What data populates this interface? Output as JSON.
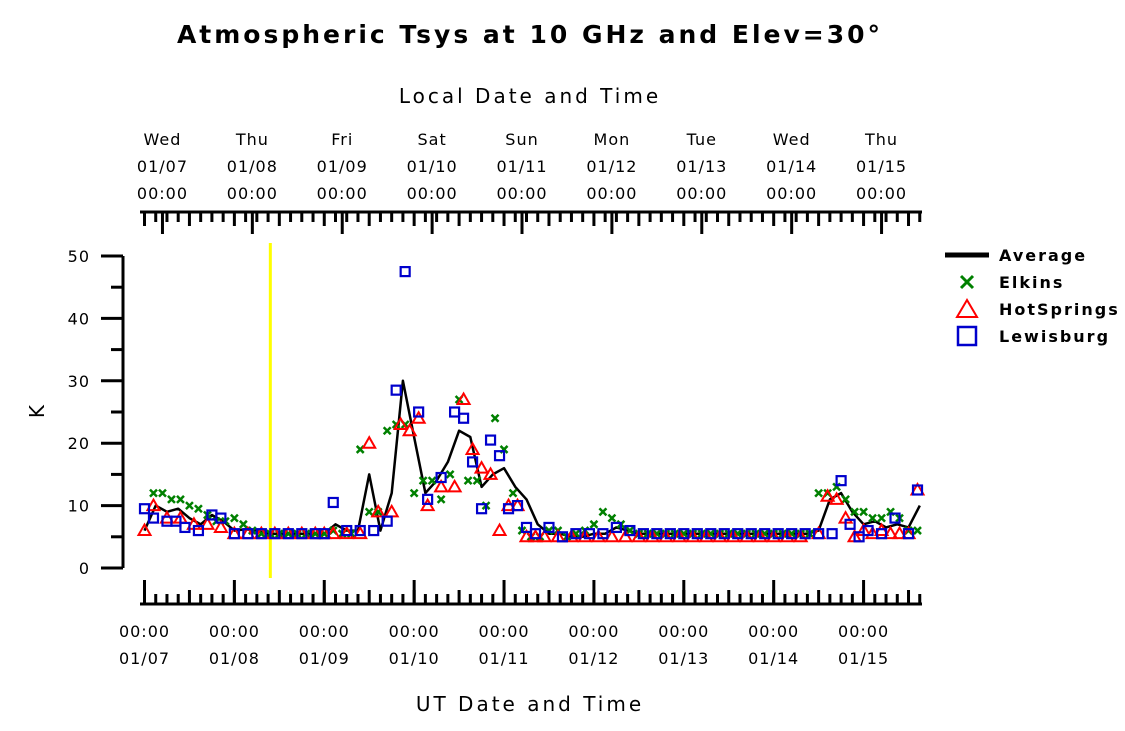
{
  "chart_data": {
    "type": "line",
    "title": "Atmospheric Tsys at 10 GHz and Elev=30°",
    "top_axis_title": "Local Date and Time",
    "bottom_axis_title": "UT Date and Time",
    "ylabel": "K",
    "ylim": [
      0,
      50
    ],
    "y_ticks": [
      "0",
      "10",
      "20",
      "30",
      "40",
      "50"
    ],
    "xlim_days": [
      -0.05,
      8.65
    ],
    "top_ticks": [
      {
        "day": "Wed",
        "date": "01/07",
        "time": "00:00"
      },
      {
        "day": "Thu",
        "date": "01/08",
        "time": "00:00"
      },
      {
        "day": "Fri",
        "date": "01/09",
        "time": "00:00"
      },
      {
        "day": "Sat",
        "date": "01/10",
        "time": "00:00"
      },
      {
        "day": "Sun",
        "date": "01/11",
        "time": "00:00"
      },
      {
        "day": "Mon",
        "date": "01/12",
        "time": "00:00"
      },
      {
        "day": "Tue",
        "date": "01/13",
        "time": "00:00"
      },
      {
        "day": "Wed",
        "date": "01/14",
        "time": "00:00"
      },
      {
        "day": "Thu",
        "date": "01/15",
        "time": "00:00"
      }
    ],
    "top_tick_positions": [
      0.2,
      1.2,
      2.2,
      3.2,
      4.2,
      5.2,
      6.2,
      7.2,
      8.2
    ],
    "bottom_ticks": [
      {
        "time": "00:00",
        "date": "01/07"
      },
      {
        "time": "00:00",
        "date": "01/08"
      },
      {
        "time": "00:00",
        "date": "01/09"
      },
      {
        "time": "00:00",
        "date": "01/10"
      },
      {
        "time": "00:00",
        "date": "01/11"
      },
      {
        "time": "00:00",
        "date": "01/12"
      },
      {
        "time": "00:00",
        "date": "01/13"
      },
      {
        "time": "00:00",
        "date": "01/14"
      },
      {
        "time": "00:00",
        "date": "01/15"
      }
    ],
    "bottom_tick_positions": [
      0,
      1,
      2,
      3,
      4,
      5,
      6,
      7,
      8
    ],
    "marker_line_day": 1.4,
    "legend_position": "right",
    "series": [
      {
        "name": "Average",
        "color": "#000000",
        "marker": "line",
        "x": [
          0,
          0.125,
          0.25,
          0.375,
          0.5,
          0.625,
          0.75,
          0.875,
          1.0,
          1.125,
          1.25,
          1.375,
          1.5,
          1.625,
          1.75,
          1.875,
          2.0,
          2.125,
          2.25,
          2.375,
          2.5,
          2.625,
          2.75,
          2.875,
          3.0,
          3.125,
          3.25,
          3.375,
          3.5,
          3.625,
          3.75,
          3.875,
          4.0,
          4.125,
          4.25,
          4.375,
          4.5,
          4.625,
          4.75,
          4.875,
          5.0,
          5.125,
          5.25,
          5.375,
          5.5,
          5.625,
          5.75,
          5.875,
          6.0,
          6.125,
          6.25,
          6.375,
          6.5,
          6.625,
          6.75,
          6.875,
          7.0,
          7.125,
          7.25,
          7.375,
          7.5,
          7.625,
          7.75,
          7.875,
          8.0,
          8.125,
          8.25,
          8.375,
          8.5,
          8.625
        ],
        "y": [
          6,
          10,
          9,
          9.5,
          8,
          7,
          8.5,
          7.5,
          6,
          6.2,
          6,
          5.5,
          5.5,
          5.5,
          5.5,
          5.5,
          5.5,
          7,
          6,
          6,
          15,
          6,
          12,
          30,
          21,
          12,
          14,
          17,
          22,
          21,
          13,
          15,
          16,
          13,
          11,
          7,
          5.5,
          5.5,
          5,
          5,
          5.5,
          5.5,
          6.5,
          6,
          5.5,
          5.5,
          5.5,
          5.5,
          5.5,
          5.5,
          5.5,
          5.5,
          5.5,
          5.5,
          5.5,
          5.5,
          5.5,
          5.5,
          5.5,
          5.5,
          6,
          11,
          12,
          9,
          7,
          7.5,
          6.5,
          7,
          6.5,
          10
        ]
      },
      {
        "name": "Elkins",
        "color": "#008000",
        "marker": "x",
        "x": [
          0.1,
          0.2,
          0.3,
          0.4,
          0.5,
          0.6,
          0.7,
          0.8,
          0.9,
          1.0,
          1.1,
          1.2,
          1.3,
          1.4,
          1.5,
          1.6,
          1.7,
          1.8,
          1.9,
          2.0,
          2.1,
          2.2,
          2.3,
          2.4,
          2.5,
          2.6,
          2.7,
          2.8,
          2.9,
          3.0,
          3.1,
          3.2,
          3.3,
          3.4,
          3.5,
          3.6,
          3.7,
          3.8,
          3.9,
          4.0,
          4.1,
          4.2,
          4.3,
          4.4,
          4.5,
          4.6,
          4.7,
          4.8,
          4.9,
          5.0,
          5.1,
          5.2,
          5.3,
          5.4,
          5.5,
          5.6,
          5.7,
          5.8,
          5.9,
          6.0,
          6.1,
          6.2,
          6.3,
          6.4,
          6.5,
          6.6,
          6.7,
          6.8,
          6.9,
          7.0,
          7.1,
          7.2,
          7.3,
          7.4,
          7.5,
          7.6,
          7.7,
          7.8,
          7.9,
          8.0,
          8.1,
          8.2,
          8.3,
          8.4,
          8.5,
          8.6
        ],
        "y": [
          12,
          12,
          11,
          11,
          10,
          9.5,
          8.5,
          7.5,
          7.5,
          8,
          7,
          6,
          5.5,
          5.5,
          5.5,
          5.5,
          5.5,
          5.5,
          5.5,
          5.5,
          6,
          5.5,
          5.5,
          19,
          9,
          9,
          22,
          23,
          23,
          12,
          14,
          14,
          11,
          15,
          27,
          14,
          14,
          10,
          24,
          19,
          12,
          6,
          5,
          5,
          6,
          6,
          5,
          5.5,
          6,
          7,
          9,
          8,
          7,
          6,
          5.5,
          5.5,
          5.5,
          5.5,
          5.5,
          5.5,
          5.5,
          5.5,
          5.5,
          5.5,
          5.5,
          5.5,
          5.5,
          5.5,
          5.5,
          5.5,
          5.5,
          5.5,
          5.5,
          5.5,
          12,
          12,
          13,
          11,
          9,
          9,
          8,
          8,
          9,
          8,
          6,
          6
        ]
      },
      {
        "name": "HotSprings",
        "color": "#ff0000",
        "marker": "triangle",
        "x": [
          0,
          0.1,
          0.25,
          0.4,
          0.55,
          0.7,
          0.85,
          1.0,
          1.15,
          1.3,
          1.45,
          1.6,
          1.75,
          1.9,
          2.0,
          2.1,
          2.25,
          2.4,
          2.5,
          2.6,
          2.75,
          2.85,
          2.95,
          3.05,
          3.15,
          3.3,
          3.45,
          3.55,
          3.65,
          3.75,
          3.85,
          3.95,
          4.05,
          4.15,
          4.25,
          4.35,
          4.45,
          4.6,
          4.75,
          4.9,
          5.05,
          5.2,
          5.35,
          5.5,
          5.65,
          5.8,
          5.95,
          6.1,
          6.25,
          6.4,
          6.55,
          6.7,
          6.85,
          7.0,
          7.15,
          7.3,
          7.5,
          7.6,
          7.7,
          7.8,
          7.9,
          8.0,
          8.1,
          8.2,
          8.3,
          8.4,
          8.5,
          8.6
        ],
        "y": [
          6,
          10,
          8,
          8,
          7,
          7,
          6.5,
          5.5,
          5.5,
          5.5,
          5.5,
          5.5,
          5.5,
          5.5,
          5.5,
          5.5,
          5.5,
          5.5,
          20,
          9,
          9,
          23,
          22,
          24,
          10,
          13,
          13,
          27,
          19,
          16,
          15,
          6,
          10,
          10,
          5,
          5,
          5,
          5,
          5,
          5,
          5,
          5,
          5,
          5,
          5,
          5,
          5,
          5,
          5,
          5,
          5,
          5,
          5,
          5,
          5,
          5,
          5.5,
          11.5,
          11,
          8,
          5,
          6,
          5.5,
          6,
          5.5,
          5.5,
          5.5,
          12.5
        ]
      },
      {
        "name": "Lewisburg",
        "color": "#0000cc",
        "marker": "square",
        "x": [
          0,
          0.1,
          0.25,
          0.35,
          0.45,
          0.6,
          0.75,
          0.85,
          1.0,
          1.15,
          1.3,
          1.45,
          1.6,
          1.75,
          1.9,
          2.0,
          2.1,
          2.25,
          2.4,
          2.55,
          2.7,
          2.8,
          2.9,
          3.05,
          3.15,
          3.3,
          3.45,
          3.55,
          3.65,
          3.75,
          3.85,
          3.95,
          4.05,
          4.15,
          4.25,
          4.35,
          4.5,
          4.65,
          4.8,
          4.95,
          5.1,
          5.25,
          5.4,
          5.55,
          5.7,
          5.85,
          6.0,
          6.15,
          6.3,
          6.45,
          6.6,
          6.75,
          6.9,
          7.05,
          7.2,
          7.35,
          7.5,
          7.65,
          7.75,
          7.85,
          7.95,
          8.05,
          8.2,
          8.35,
          8.5,
          8.6
        ],
        "y": [
          9.5,
          8,
          7.5,
          7.5,
          6.5,
          6,
          8.5,
          8,
          5.5,
          5.5,
          5.5,
          5.5,
          5.5,
          5.5,
          5.5,
          5.5,
          10.5,
          6,
          6,
          6,
          7.5,
          28.5,
          47.5,
          25,
          11,
          14.5,
          25,
          24,
          17,
          9.5,
          20.5,
          18,
          9.5,
          10,
          6.5,
          5.5,
          6.5,
          5,
          5.5,
          5.5,
          5.5,
          6.5,
          6,
          5.5,
          5.5,
          5.5,
          5.5,
          5.5,
          5.5,
          5.5,
          5.5,
          5.5,
          5.5,
          5.5,
          5.5,
          5.5,
          5.5,
          5.5,
          14,
          7,
          5,
          6,
          5.5,
          8,
          5.5,
          12.5
        ]
      }
    ]
  }
}
